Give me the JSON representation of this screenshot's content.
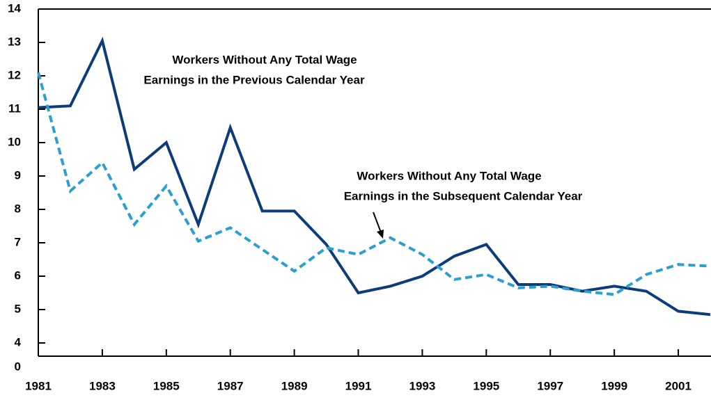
{
  "chart_data": {
    "type": "line",
    "x": [
      1981,
      1982,
      1983,
      1984,
      1985,
      1986,
      1987,
      1988,
      1989,
      1990,
      1991,
      1992,
      1993,
      1994,
      1995,
      1996,
      1997,
      1998,
      1999,
      2000,
      2001,
      2002
    ],
    "series": [
      {
        "name": "Workers Without Any Total Wage Earnings in the Previous Calendar Year",
        "color": "#0d3c7a",
        "dash": "solid",
        "values": [
          11.05,
          11.1,
          13.05,
          9.2,
          10.0,
          7.55,
          10.45,
          7.95,
          7.95,
          6.95,
          5.5,
          5.7,
          6.0,
          6.6,
          6.95,
          5.75,
          5.75,
          5.55,
          5.7,
          5.55,
          4.95,
          4.85
        ]
      },
      {
        "name": "Workers Without Any Total Wage Earnings in the Subsequent Calendar Year",
        "color": "#2a9fd0",
        "dash": "dashed",
        "values": [
          12.1,
          8.55,
          9.4,
          7.55,
          8.7,
          7.05,
          7.45,
          6.8,
          6.15,
          6.85,
          6.65,
          7.15,
          6.65,
          5.9,
          6.05,
          5.65,
          5.7,
          5.55,
          5.45,
          6.05,
          6.35,
          6.3
        ]
      }
    ],
    "annotations": [
      {
        "lines": [
          "Workers Without Any Total Wage",
          "Earnings in the Previous Calendar Year"
        ]
      },
      {
        "lines": [
          "Workers Without Any Total Wage",
          "Earnings in the Subsequent Calendar Year"
        ]
      }
    ],
    "xlim": [
      1981,
      2002
    ],
    "xticks": [
      1981,
      1983,
      1985,
      1987,
      1989,
      1991,
      1993,
      1995,
      1997,
      1999,
      2001
    ],
    "ylim": [
      0,
      14
    ],
    "axis_break": [
      0,
      4
    ],
    "yticks": [
      0,
      4,
      5,
      6,
      7,
      8,
      9,
      10,
      11,
      12,
      13,
      14
    ]
  }
}
